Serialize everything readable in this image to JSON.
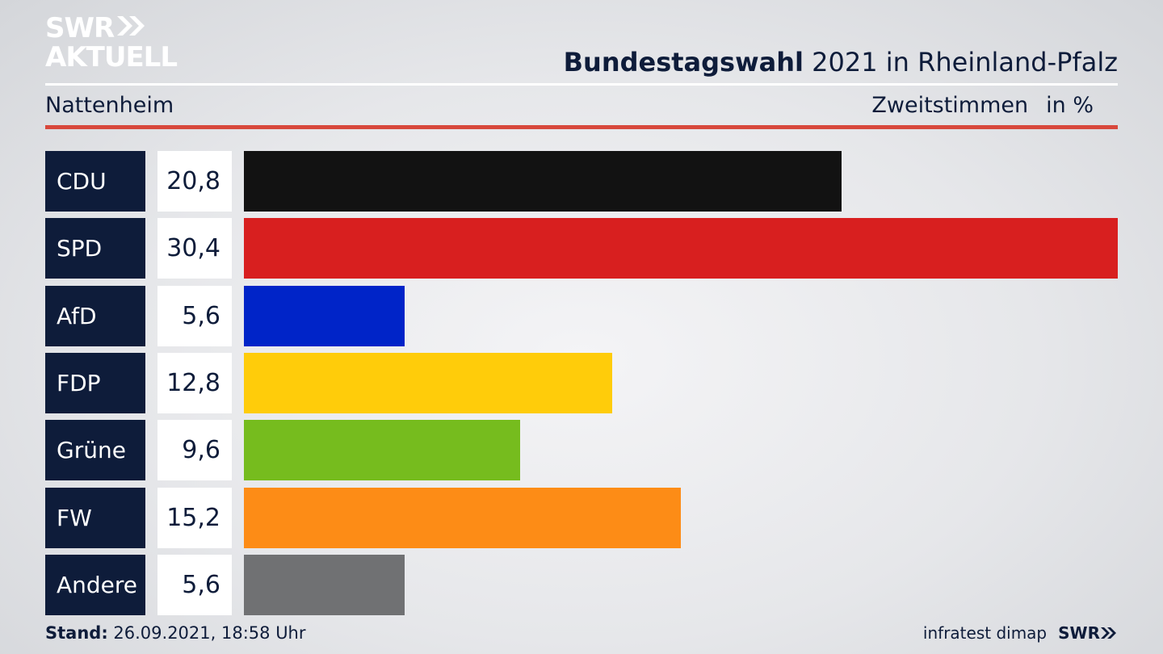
{
  "branding": {
    "logo_line1": "SWR",
    "logo_line2": "AKTUELL",
    "logo_arrows_icon": "double-chevron-right-icon"
  },
  "header": {
    "title_bold": "Bundestagswahl",
    "title_rest": "2021 in Rheinland-Pfalz",
    "location": "Nattenheim",
    "measure": "Zweitstimmen",
    "unit": "in %"
  },
  "chart_data": {
    "type": "bar",
    "orientation": "horizontal",
    "categories": [
      "CDU",
      "SPD",
      "AfD",
      "FDP",
      "Grüne",
      "FW",
      "Andere"
    ],
    "values": [
      20.8,
      30.4,
      5.6,
      12.8,
      9.6,
      15.2,
      5.6
    ],
    "value_labels": [
      "20,8",
      "30,4",
      "5,6",
      "12,8",
      "9,6",
      "15,2",
      "5,6"
    ],
    "colors": [
      "#121212",
      "#d81f1f",
      "#0024c8",
      "#ffcc0a",
      "#76bc1e",
      "#fd8c16",
      "#707173"
    ],
    "xlim": [
      0,
      30.4
    ]
  },
  "footer": {
    "stand_label": "Stand:",
    "stand_value": "26.09.2021, 18:58 Uhr",
    "source": "infratest dimap",
    "broadcaster": "SWR"
  },
  "colors": {
    "navy": "#0e1c3a",
    "accent_red": "#d8483c"
  }
}
